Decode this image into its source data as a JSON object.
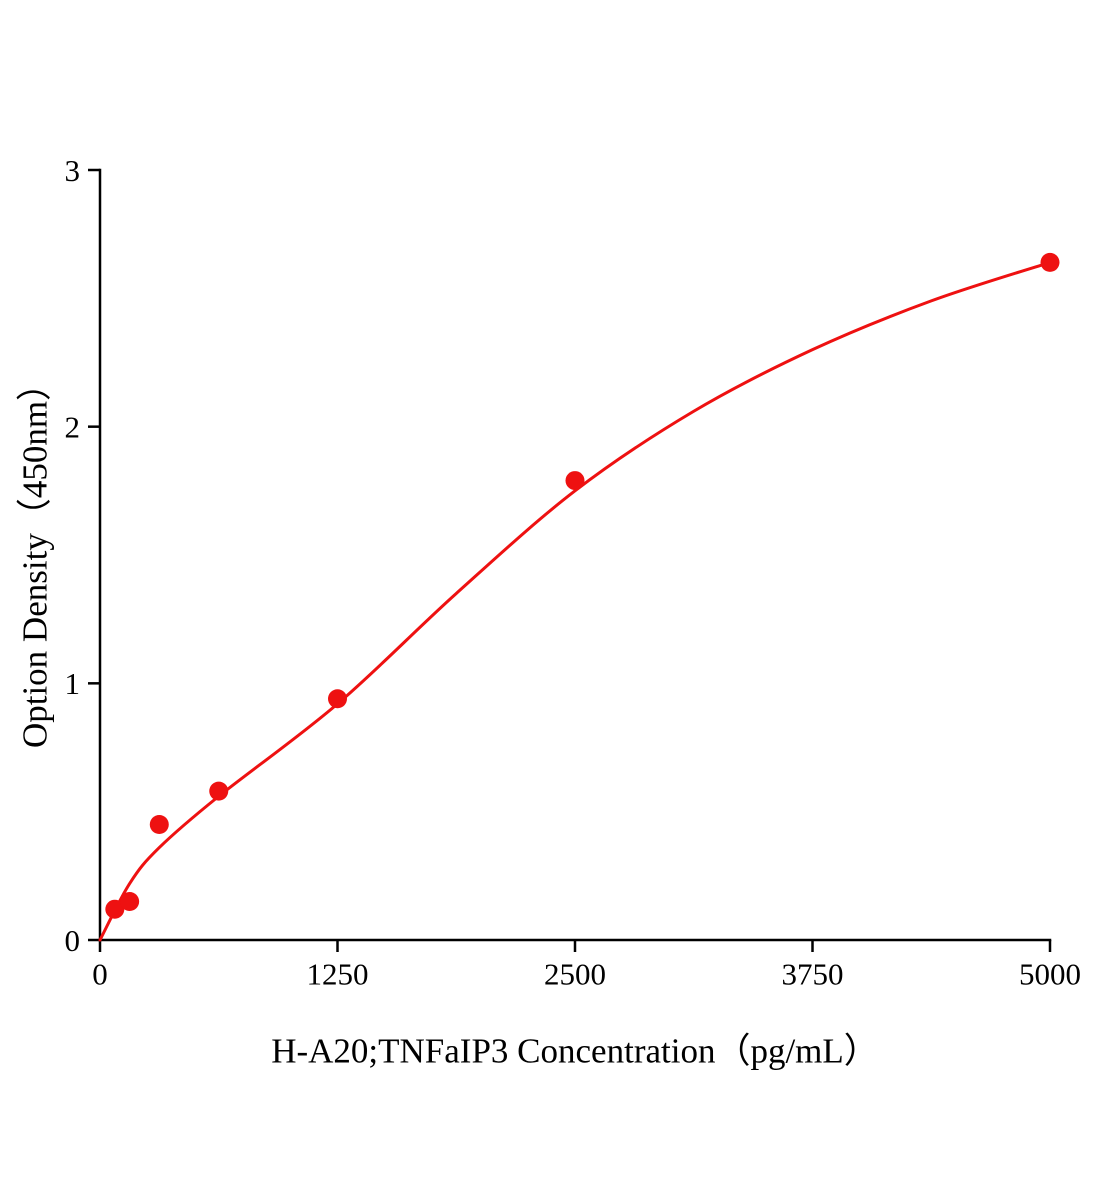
{
  "figure": {
    "background": "#ffffff",
    "accent_color": "#ee1111",
    "axis_color": "#000000"
  },
  "chart_data": {
    "type": "scatter",
    "title": "",
    "xlabel": "H-A20;TNFaIP3 Concentration（pg/mL）",
    "ylabel": "Option Density（450nm）",
    "xlim": [
      0,
      5000
    ],
    "ylim": [
      0,
      3
    ],
    "x_ticks": [
      0,
      1250,
      2500,
      3750,
      5000
    ],
    "y_ticks": [
      0,
      1,
      2,
      3
    ],
    "grid": false,
    "legend": "none",
    "series": [
      {
        "name": "standard-points",
        "type": "scatter",
        "color": "#ee1111",
        "marker_radius": 9.5,
        "x": [
          78,
          156,
          312,
          625,
          1250,
          2500,
          5000
        ],
        "y": [
          0.12,
          0.15,
          0.45,
          0.58,
          0.94,
          1.79,
          2.64
        ]
      },
      {
        "name": "fit-curve",
        "type": "line",
        "color": "#ee1111",
        "stroke_width": 3,
        "points": [
          [
            0,
            0
          ],
          [
            156,
            0.22
          ],
          [
            312,
            0.36
          ],
          [
            625,
            0.56
          ],
          [
            1250,
            0.92
          ],
          [
            1875,
            1.35
          ],
          [
            2500,
            1.75
          ],
          [
            3125,
            2.06
          ],
          [
            3750,
            2.3
          ],
          [
            4375,
            2.49
          ],
          [
            5000,
            2.64
          ]
        ]
      }
    ]
  }
}
